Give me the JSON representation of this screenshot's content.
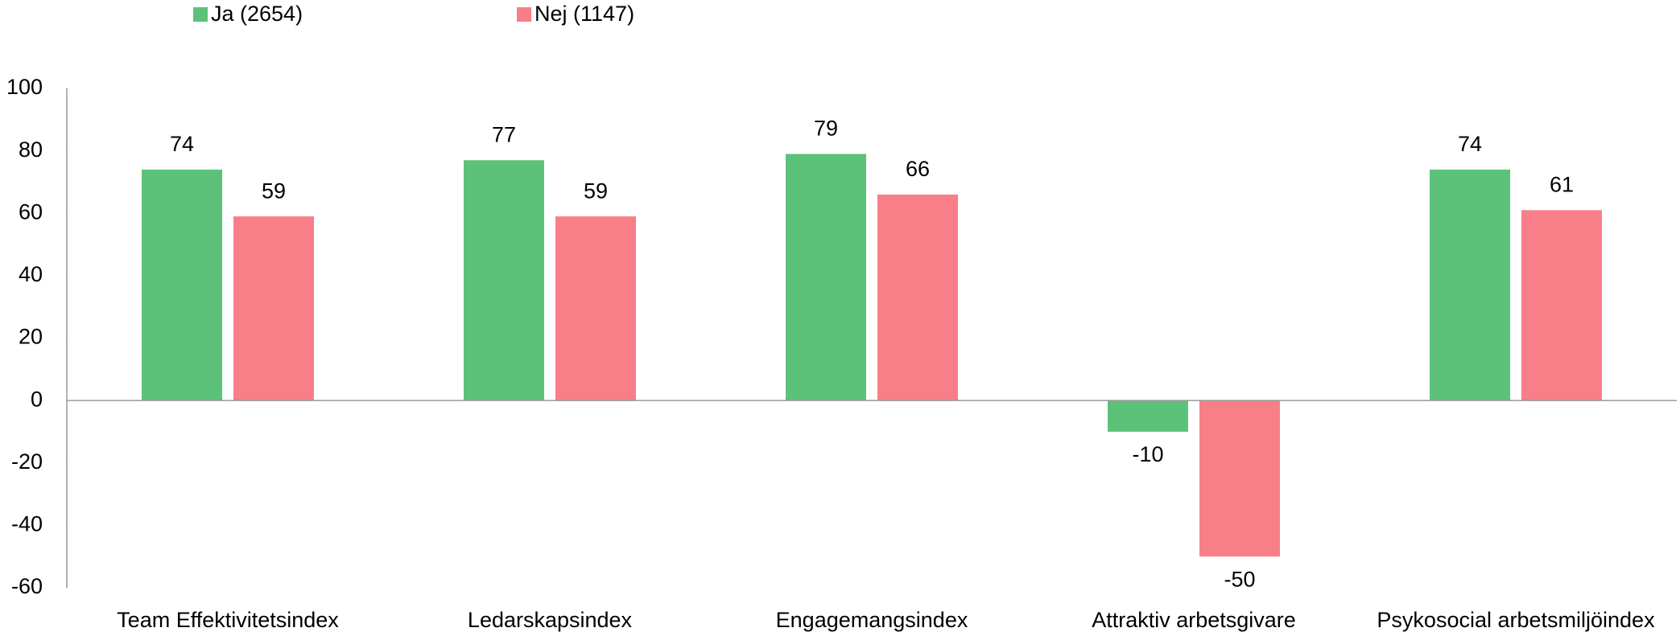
{
  "chart_data": {
    "type": "bar",
    "categories": [
      "Team Effektivitetsindex",
      "Ledarskapsindex",
      "Engagemangsindex",
      "Attraktiv arbetsgivare",
      "Psykosocial arbetsmiljöindex"
    ],
    "series": [
      {
        "name": "Ja (2654)",
        "color": "#5cc27a",
        "values": [
          74,
          77,
          79,
          -10,
          74
        ]
      },
      {
        "name": "Nej (1147)",
        "color": "#f87e88",
        "values": [
          59,
          59,
          66,
          -50,
          61
        ]
      }
    ],
    "ylim": [
      -60,
      100
    ],
    "yticks": [
      -60,
      -40,
      -20,
      0,
      20,
      40,
      60,
      80,
      100
    ],
    "grid": false,
    "legend": "top"
  }
}
